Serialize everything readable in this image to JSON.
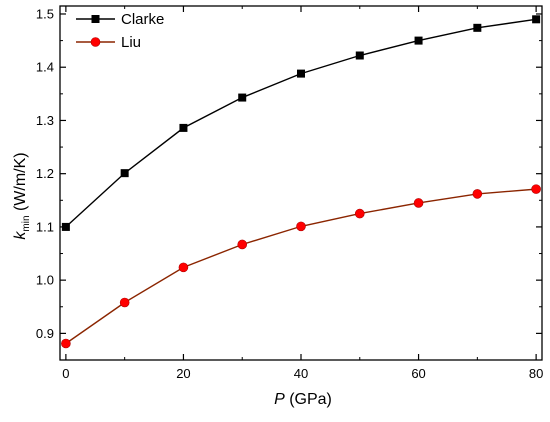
{
  "chart_data": {
    "type": "line",
    "xlabel": {
      "symbol": "P",
      "unit": " (GPa)"
    },
    "ylabel": {
      "symbol": "k",
      "subscript": "min",
      "unit": " (W/m/K)"
    },
    "xlim": [
      -1,
      81
    ],
    "ylim": [
      0.85,
      1.515
    ],
    "xticks": [
      0,
      20,
      40,
      60,
      80
    ],
    "xminor": [
      10,
      30,
      50,
      70
    ],
    "yticks": [
      0.9,
      1.0,
      1.1,
      1.2,
      1.3,
      1.4,
      1.5
    ],
    "ytick_labels": [
      "0.9",
      "1.0",
      "1.1",
      "1.2",
      "1.3",
      "1.4",
      "1.5"
    ],
    "yminor": [
      0.85,
      0.95,
      1.05,
      1.15,
      1.25,
      1.35,
      1.45
    ],
    "grid": false,
    "legend_position": "top-left",
    "x": [
      0,
      10,
      20,
      30,
      40,
      50,
      60,
      70,
      80
    ],
    "series": [
      {
        "name": "Clarke",
        "marker": "square",
        "color": "#000000",
        "values": [
          1.1,
          1.201,
          1.286,
          1.343,
          1.388,
          1.422,
          1.45,
          1.474,
          1.49
        ]
      },
      {
        "name": "Liu",
        "marker": "circle",
        "color": "#ff0000",
        "line_color": "#8b2500",
        "values": [
          0.881,
          0.958,
          1.024,
          1.067,
          1.101,
          1.125,
          1.145,
          1.162,
          1.171
        ]
      }
    ]
  }
}
